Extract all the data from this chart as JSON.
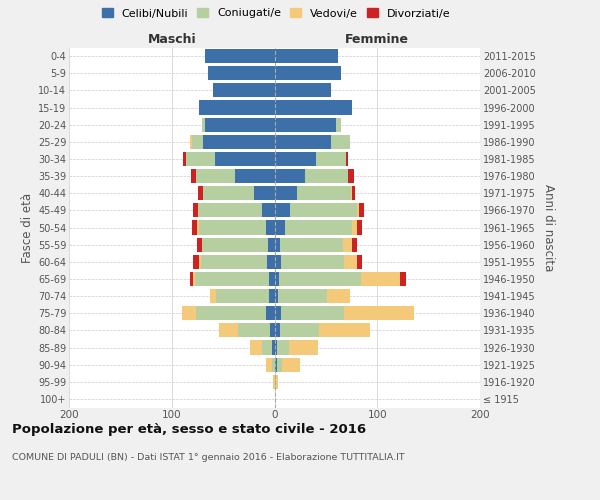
{
  "age_groups": [
    "100+",
    "95-99",
    "90-94",
    "85-89",
    "80-84",
    "75-79",
    "70-74",
    "65-69",
    "60-64",
    "55-59",
    "50-54",
    "45-49",
    "40-44",
    "35-39",
    "30-34",
    "25-29",
    "20-24",
    "15-19",
    "10-14",
    "5-9",
    "0-4"
  ],
  "birth_years": [
    "≤ 1915",
    "1916-1920",
    "1921-1925",
    "1926-1930",
    "1931-1935",
    "1936-1940",
    "1941-1945",
    "1946-1950",
    "1951-1955",
    "1956-1960",
    "1961-1965",
    "1966-1970",
    "1971-1975",
    "1976-1980",
    "1981-1985",
    "1986-1990",
    "1991-1995",
    "1996-2000",
    "2001-2005",
    "2006-2010",
    "2011-2015"
  ],
  "m_celibi": [
    0,
    0,
    0,
    2,
    4,
    8,
    5,
    5,
    7,
    6,
    8,
    12,
    20,
    38,
    58,
    70,
    68,
    73,
    60,
    65,
    68
  ],
  "m_coniugati": [
    0,
    0,
    2,
    10,
    32,
    68,
    52,
    72,
    65,
    65,
    65,
    62,
    50,
    38,
    28,
    10,
    3,
    0,
    0,
    0,
    0
  ],
  "m_vedovi": [
    0,
    1,
    6,
    12,
    18,
    14,
    6,
    2,
    1,
    0,
    2,
    0,
    0,
    0,
    0,
    2,
    0,
    0,
    0,
    0,
    0
  ],
  "m_divorziati": [
    0,
    0,
    0,
    0,
    0,
    0,
    0,
    3,
    6,
    4,
    5,
    5,
    4,
    5,
    3,
    0,
    0,
    0,
    0,
    0,
    0
  ],
  "f_nubili": [
    0,
    0,
    2,
    2,
    5,
    6,
    3,
    4,
    6,
    5,
    10,
    15,
    22,
    30,
    40,
    55,
    60,
    75,
    55,
    65,
    62
  ],
  "f_coniugate": [
    0,
    1,
    5,
    12,
    38,
    62,
    48,
    80,
    62,
    62,
    65,
    65,
    52,
    42,
    30,
    18,
    5,
    0,
    0,
    0,
    0
  ],
  "f_vedove": [
    0,
    2,
    18,
    28,
    50,
    68,
    22,
    38,
    12,
    8,
    5,
    2,
    1,
    0,
    0,
    0,
    0,
    0,
    0,
    0,
    0
  ],
  "f_divorziate": [
    0,
    0,
    0,
    0,
    0,
    0,
    0,
    6,
    5,
    5,
    5,
    5,
    3,
    5,
    2,
    0,
    0,
    0,
    0,
    0,
    0
  ],
  "color_celibi": "#3d6fa8",
  "color_coniugati": "#b5cfa0",
  "color_vedovi": "#f5c97a",
  "color_divorziati": "#cc2222",
  "label_celibi": "Celibi/Nubili",
  "label_coniugati": "Coniugati/e",
  "label_vedovi": "Vedovi/e",
  "label_divorziati": "Divorziati/e",
  "title1": "Popolazione per età, sesso e stato civile - 2016",
  "title2": "COMUNE DI PADULI (BN) - Dati ISTAT 1° gennaio 2016 - Elaborazione TUTTITALIA.IT",
  "label_maschi": "Maschi",
  "label_femmine": "Femmine",
  "ylabel_left": "Fasce di età",
  "ylabel_right": "Anni di nascita",
  "xlim": 200,
  "bg_color": "#f0f0f0",
  "plot_bg_color": "#ffffff"
}
